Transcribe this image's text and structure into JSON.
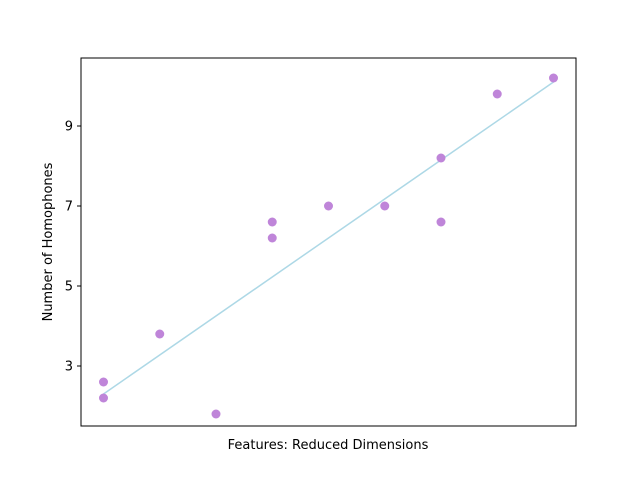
{
  "chart_data": {
    "type": "scatter",
    "xlabel": "Features: Reduced Dimensions",
    "ylabel": "Number of Homophones",
    "x_ticks_shown": false,
    "xlim": [
      -0.4,
      8.4
    ],
    "ylim": [
      1.5,
      10.7
    ],
    "yticks": [
      3,
      5,
      7,
      9
    ],
    "grid": false,
    "colors": {
      "points": "#bf85d9",
      "trendline": "#add8e6"
    },
    "series": [
      {
        "points": [
          {
            "x": 0,
            "y": 2.6
          },
          {
            "x": 0,
            "y": 2.2
          },
          {
            "x": 1,
            "y": 3.8
          },
          {
            "x": 2,
            "y": 1.8
          },
          {
            "x": 3,
            "y": 6.6
          },
          {
            "x": 3,
            "y": 6.2
          },
          {
            "x": 4,
            "y": 7.0
          },
          {
            "x": 5,
            "y": 7.0
          },
          {
            "x": 6,
            "y": 8.2
          },
          {
            "x": 6,
            "y": 6.6
          },
          {
            "x": 7,
            "y": 9.8
          },
          {
            "x": 8,
            "y": 10.2
          }
        ]
      }
    ],
    "trendline": {
      "x": [
        0,
        8
      ],
      "y": [
        2.3,
        10.1
      ]
    }
  }
}
